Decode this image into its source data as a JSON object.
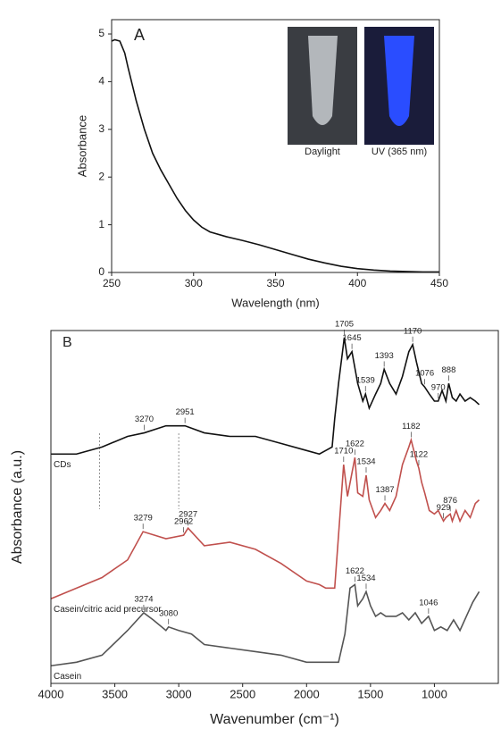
{
  "chart_data": [
    {
      "type": "line",
      "panel_label": "A",
      "xlabel": "Wavelength (nm)",
      "ylabel": "Absorbance",
      "inset_labels": [
        "Daylight",
        "UV (365 nm)"
      ],
      "color": "#111111",
      "x": [
        250,
        252,
        255,
        258,
        260,
        265,
        270,
        275,
        280,
        285,
        290,
        295,
        300,
        305,
        310,
        320,
        330,
        340,
        350,
        360,
        370,
        380,
        390,
        400,
        410,
        420,
        430,
        440,
        450
      ],
      "values": [
        4.85,
        4.88,
        4.85,
        4.6,
        4.3,
        3.6,
        3.0,
        2.5,
        2.15,
        1.85,
        1.55,
        1.3,
        1.1,
        0.95,
        0.85,
        0.75,
        0.67,
        0.58,
        0.48,
        0.38,
        0.28,
        0.2,
        0.13,
        0.08,
        0.05,
        0.03,
        0.02,
        0.01,
        0.01
      ],
      "xlim": [
        250,
        450
      ],
      "xticks": [
        250,
        300,
        350,
        400,
        450
      ],
      "ylim": [
        0,
        5.3
      ],
      "yticks": [
        0,
        1,
        2,
        3,
        4,
        5
      ]
    },
    {
      "type": "line",
      "panel_label": "B",
      "xlabel": "Wavenumber (cm⁻¹)",
      "ylabel": "Absorbance (a.u.)",
      "xlim": [
        4000,
        500
      ],
      "xticks": [
        4000,
        3500,
        3000,
        2500,
        2000,
        1500,
        1000
      ],
      "ylim": [
        0,
        100
      ],
      "reference_lines": [
        3620,
        3000
      ],
      "series": [
        {
          "name": "CDs",
          "color": "#111111",
          "x": [
            4000,
            3800,
            3600,
            3400,
            3270,
            3100,
            2951,
            2800,
            2600,
            2400,
            2200,
            2000,
            1900,
            1850,
            1800,
            1780,
            1750,
            1705,
            1680,
            1645,
            1600,
            1560,
            1539,
            1510,
            1460,
            1420,
            1393,
            1350,
            1300,
            1250,
            1200,
            1170,
            1140,
            1100,
            1076,
            1040,
            1000,
            970,
            940,
            910,
            888,
            860,
            830,
            800,
            760,
            720,
            680,
            650
          ],
          "values": [
            65,
            65,
            67,
            70,
            71,
            73,
            73,
            71,
            70,
            70,
            68,
            66,
            65,
            66,
            67,
            75,
            85,
            98,
            92,
            94,
            85,
            80,
            82,
            78,
            82,
            85,
            89,
            85,
            82,
            87,
            94,
            96,
            91,
            85,
            84,
            82,
            80,
            80,
            83,
            80,
            85,
            81,
            80,
            82,
            80,
            81,
            80,
            79
          ],
          "peaks": [
            3270,
            2951,
            1705,
            1645,
            1539,
            1393,
            1170,
            1076,
            970,
            888
          ]
        },
        {
          "name": "Casein/citric acid precursor",
          "color": "#c0504d",
          "x": [
            4000,
            3800,
            3600,
            3400,
            3279,
            3100,
            2962,
            2927,
            2800,
            2600,
            2400,
            2200,
            2000,
            1900,
            1850,
            1800,
            1780,
            1750,
            1710,
            1680,
            1622,
            1600,
            1560,
            1534,
            1510,
            1460,
            1420,
            1387,
            1350,
            1300,
            1250,
            1200,
            1182,
            1140,
            1122,
            1100,
            1076,
            1040,
            1000,
            970,
            929,
            910,
            876,
            860,
            830,
            800,
            760,
            720,
            680,
            650
          ],
          "values": [
            24,
            27,
            30,
            35,
            43,
            41,
            42,
            44,
            39,
            40,
            38,
            34,
            29,
            28,
            27,
            27,
            27,
            42,
            62,
            53,
            64,
            54,
            53,
            59,
            52,
            47,
            49,
            51,
            49,
            53,
            62,
            67,
            69,
            63,
            61,
            57,
            54,
            49,
            48,
            49,
            46,
            47,
            48,
            46,
            49,
            46,
            49,
            47,
            51,
            52
          ],
          "peaks": [
            3279,
            2962,
            2927,
            1710,
            1622,
            1534,
            1387,
            1182,
            1122,
            929,
            876
          ]
        },
        {
          "name": "Casein",
          "color": "#555555",
          "x": [
            4000,
            3800,
            3600,
            3400,
            3274,
            3200,
            3100,
            3080,
            3000,
            2900,
            2800,
            2600,
            2400,
            2200,
            2000,
            1800,
            1750,
            1700,
            1660,
            1622,
            1600,
            1560,
            1534,
            1500,
            1460,
            1420,
            1380,
            1300,
            1250,
            1200,
            1150,
            1100,
            1046,
            1000,
            950,
            900,
            850,
            800,
            750,
            700,
            650
          ],
          "values": [
            5,
            6,
            8,
            15,
            20,
            18,
            15,
            16,
            15,
            14,
            11,
            10,
            9,
            8,
            6,
            6,
            6,
            14,
            27,
            28,
            22,
            24,
            26,
            22,
            19,
            20,
            19,
            19,
            20,
            18,
            20,
            17,
            19,
            15,
            16,
            15,
            18,
            15,
            19,
            23,
            26
          ],
          "peaks": [
            3274,
            3080,
            1622,
            1534,
            1046
          ]
        }
      ]
    }
  ]
}
